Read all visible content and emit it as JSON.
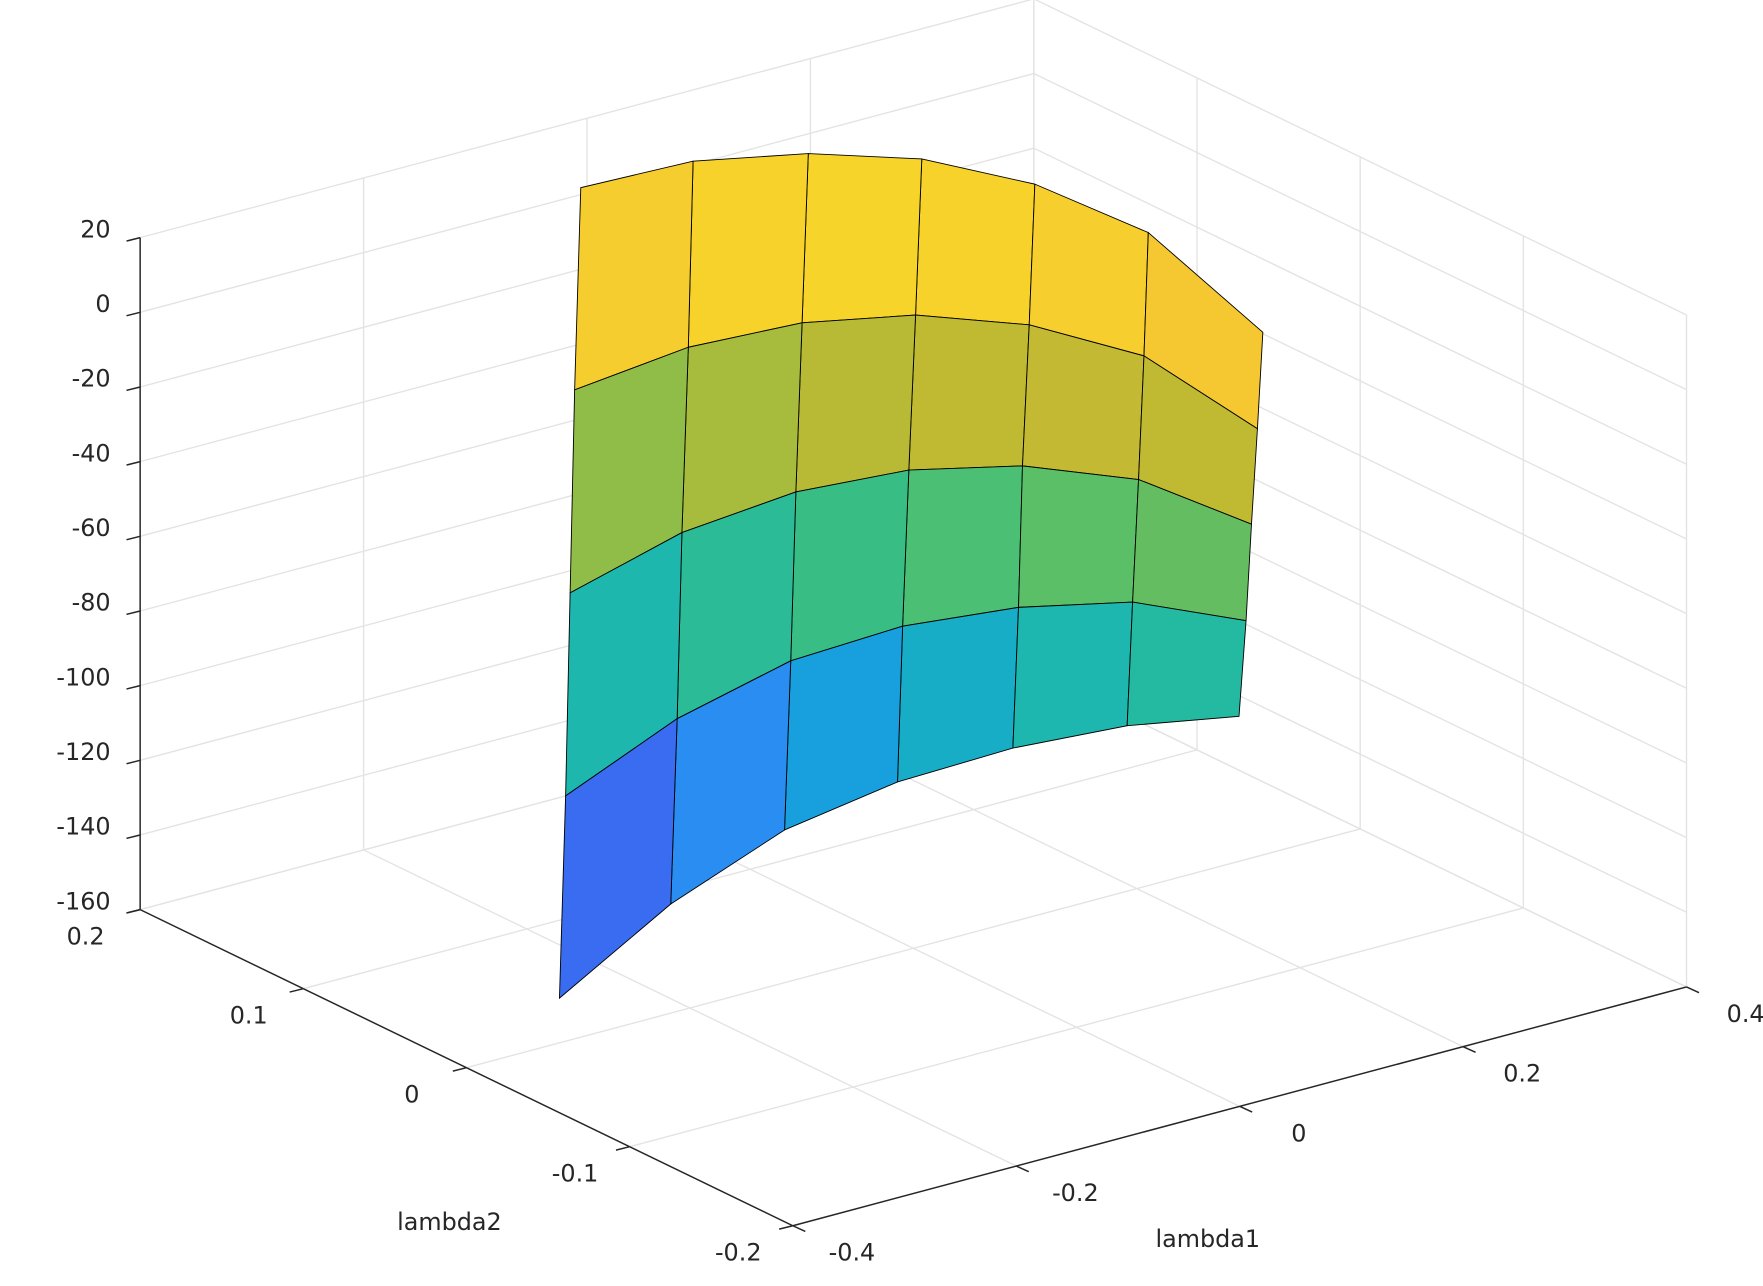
{
  "chart_data": {
    "type": "surface",
    "xlabel": "lambda1",
    "ylabel": "lambda2",
    "x": [
      [
        -0.308,
        -0.185,
        -0.089,
        -0.02,
        0.038,
        0.095,
        0.144
      ],
      [
        -0.247,
        -0.134,
        -0.044,
        0.024,
        0.081,
        0.132,
        0.162
      ],
      [
        -0.186,
        -0.083,
        0,
        0.069,
        0.124,
        0.168,
        0.18
      ],
      [
        -0.125,
        -0.032,
        0.045,
        0.113,
        0.168,
        0.205,
        0.197
      ],
      [
        -0.064,
        0.019,
        0.09,
        0.158,
        0.211,
        0.241,
        0.215
      ]
    ],
    "y": [
      [
        0.006,
        0.022,
        0.018,
        -0.004,
        -0.035,
        -0.066,
        -0.101
      ],
      [
        0.044,
        0.053,
        0.045,
        0.023,
        -0.009,
        -0.044,
        -0.093
      ],
      [
        0.083,
        0.085,
        0.072,
        0.05,
        0.018,
        -0.023,
        -0.084
      ],
      [
        0.122,
        0.116,
        0.099,
        0.076,
        0.044,
        -0.001,
        -0.076
      ],
      [
        0.16,
        0.148,
        0.126,
        0.103,
        0.07,
        0.021,
        -0.067
      ]
    ],
    "z": [
      [
        -150,
        -138,
        -125,
        -113,
        -102,
        -94,
        -88
      ],
      [
        -108.75,
        -99,
        -89,
        -80.5,
        -73.25,
        -68.5,
        -65.5
      ],
      [
        -67.5,
        -60,
        -53,
        -48,
        -44.5,
        -43,
        -43
      ],
      [
        -26.25,
        -21,
        -17,
        -15.5,
        -15.75,
        -17.5,
        -20.5
      ],
      [
        15,
        18,
        19,
        17,
        13,
        8,
        2
      ]
    ],
    "xlim": [
      -0.4,
      0.4
    ],
    "xticks": [
      -0.4,
      -0.2,
      0,
      0.2,
      0.4
    ],
    "ylim": [
      -0.2,
      0.2
    ],
    "yticks": [
      -0.2,
      -0.1,
      0,
      0.1,
      0.2
    ],
    "zlim": [
      -160,
      20
    ],
    "zticks": [
      -160,
      -140,
      -120,
      -100,
      -80,
      -60,
      -40,
      -20,
      0,
      20
    ],
    "grid": true,
    "colormap": "parula",
    "edgecolor": "#000000"
  }
}
